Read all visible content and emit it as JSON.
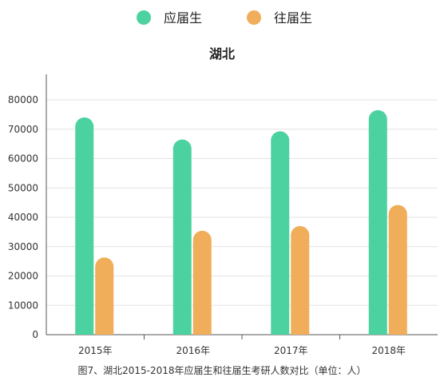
{
  "chart_data": {
    "type": "bar",
    "title": "湖北",
    "categories": [
      "2015年",
      "2016年",
      "2017年",
      "2018年"
    ],
    "series": [
      {
        "name": "应届生",
        "color": "#4cd2a0",
        "values": [
          74000,
          66500,
          69300,
          76500
        ]
      },
      {
        "name": "往届生",
        "color": "#f0ad5a",
        "values": [
          26300,
          35400,
          37000,
          44200
        ]
      }
    ],
    "ylim": [
      0,
      80000
    ],
    "yticks": [
      0,
      10000,
      20000,
      30000,
      40000,
      50000,
      60000,
      70000,
      80000
    ],
    "grid": true,
    "legend": "top-center"
  },
  "caption": "图7、湖北2015-2018年应届生和往届生考研人数对比（单位：人）"
}
